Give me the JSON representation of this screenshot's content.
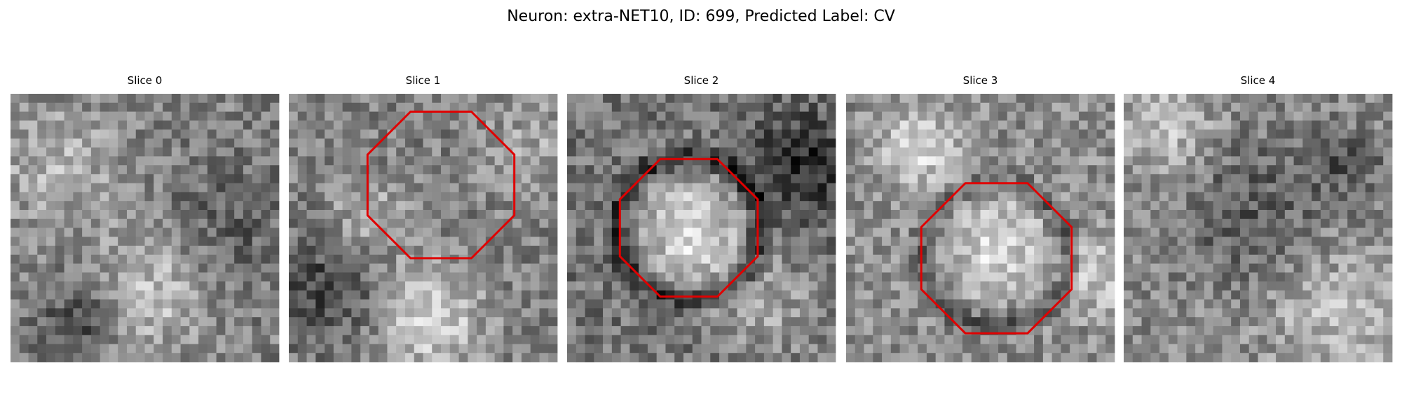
{
  "header": {
    "title": "Neuron: extra-NET10, ID: 699, Predicted Label: CV"
  },
  "panels": [
    {
      "title": "Slice 0"
    },
    {
      "title": "Slice 1"
    },
    {
      "title": "Slice 2"
    },
    {
      "title": "Slice 3"
    },
    {
      "title": "Slice 4"
    }
  ]
}
